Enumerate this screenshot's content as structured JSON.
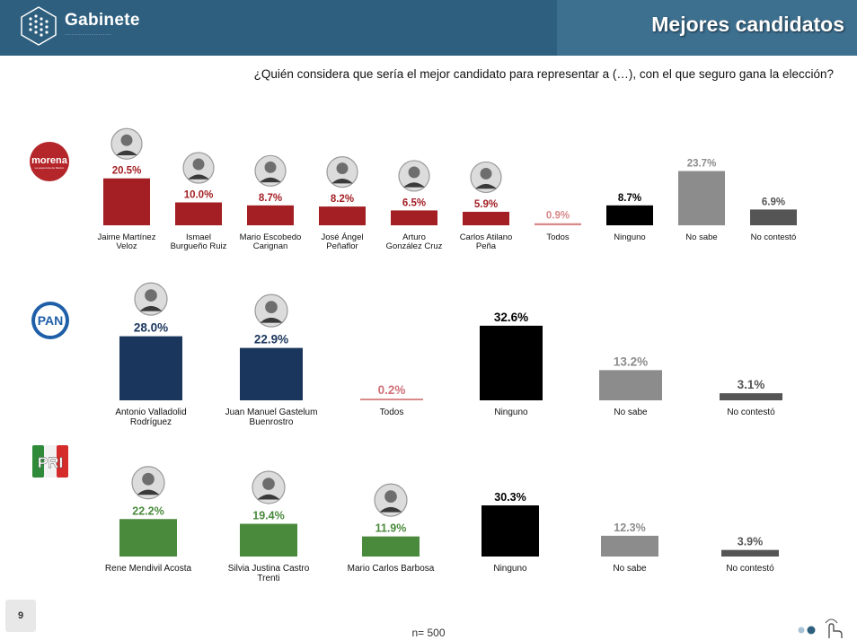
{
  "header": {
    "brand": "Gabinete",
    "title": "Mejores candidatos"
  },
  "question": "¿Quién considera que sería el mejor candidato para representar a (…), con el que seguro gana la elección?",
  "footer": {
    "page_number": "9",
    "sample": "n= 500"
  },
  "colors": {
    "header": "#2e5f7e",
    "morena": "#a31f24",
    "pan": "#1b365d",
    "pri": "#4a8a3c",
    "todos": "#d98a8a",
    "ninguno": "#000000",
    "no_sabe": "#8c8c8c",
    "no_contesto": "#555555"
  },
  "parties": [
    {
      "name": "morena",
      "icon": "morena-logo"
    },
    {
      "name": "PAN",
      "icon": "pan-logo"
    },
    {
      "name": "PRI",
      "icon": "pri-logo"
    }
  ],
  "chart_data": [
    {
      "type": "bar",
      "group": "morena",
      "categories": [
        "Jaime Martínez Veloz",
        "Ismael Burgueño Ruiz",
        "Mario Escobedo Carignan",
        "José Ángel Peñaflor",
        "Arturo González Cruz",
        "Carlos Atilano Peña",
        "Todos",
        "Ninguno",
        "No sabe",
        "No contestó"
      ],
      "values": [
        20.5,
        10.0,
        8.7,
        8.2,
        6.5,
        5.9,
        0.9,
        8.7,
        23.7,
        6.9
      ],
      "value_labels": [
        "20.5%",
        "10.0%",
        "8.7%",
        "8.2%",
        "6.5%",
        "5.9%",
        "0.9%",
        "8.7%",
        "23.7%",
        "6.9%"
      ],
      "colors": [
        "#a31f24",
        "#a31f24",
        "#a31f24",
        "#a31f24",
        "#a31f24",
        "#a31f24",
        "#d98a8a",
        "#000000",
        "#8c8c8c",
        "#555555"
      ],
      "label_colors": [
        "#a31f24",
        "#a31f24",
        "#a31f24",
        "#a31f24",
        "#a31f24",
        "#a31f24",
        "#d98a8a",
        "#000000",
        "#8c8c8c",
        "#555555"
      ],
      "has_photo": [
        true,
        true,
        true,
        true,
        true,
        true,
        false,
        false,
        false,
        false
      ]
    },
    {
      "type": "bar",
      "group": "PAN",
      "categories": [
        "Antonio Valladolid Rodríguez",
        "Juan Manuel Gastelum Buenrostro",
        "Todos",
        "Ninguno",
        "No sabe",
        "No contestó"
      ],
      "values": [
        28.0,
        22.9,
        0.2,
        32.6,
        13.2,
        3.1
      ],
      "value_labels": [
        "28.0%",
        "22.9%",
        "0.2%",
        "32.6%",
        "13.2%",
        "3.1%"
      ],
      "colors": [
        "#1b365d",
        "#1b365d",
        "#d98a8a",
        "#000000",
        "#8c8c8c",
        "#555555"
      ],
      "label_colors": [
        "#1b365d",
        "#1b365d",
        "#d0707a",
        "#000000",
        "#8c8c8c",
        "#555555"
      ],
      "has_photo": [
        true,
        true,
        false,
        false,
        false,
        false
      ]
    },
    {
      "type": "bar",
      "group": "PRI",
      "categories": [
        "Rene Mendivil Acosta",
        "Silvia Justina Castro Trenti",
        "Mario Carlos Barbosa",
        "Ninguno",
        "No sabe",
        "No contestó"
      ],
      "values": [
        22.2,
        19.4,
        11.9,
        30.3,
        12.3,
        3.9
      ],
      "value_labels": [
        "22.2%",
        "19.4%",
        "11.9%",
        "30.3%",
        "12.3%",
        "3.9%"
      ],
      "colors": [
        "#4a8a3c",
        "#4a8a3c",
        "#4a8a3c",
        "#000000",
        "#8c8c8c",
        "#555555"
      ],
      "label_colors": [
        "#4a8a3c",
        "#4a8a3c",
        "#4a8a3c",
        "#000000",
        "#8c8c8c",
        "#555555"
      ],
      "has_photo": [
        true,
        true,
        true,
        false,
        false,
        false
      ]
    }
  ]
}
